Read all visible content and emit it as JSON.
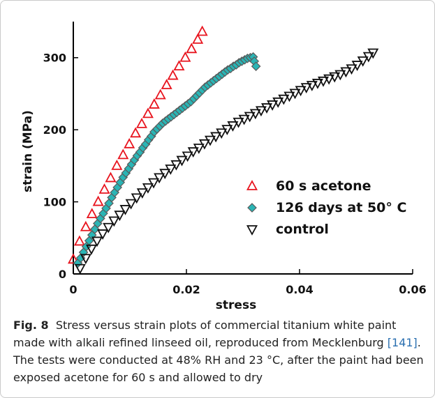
{
  "chart_data": {
    "type": "scatter",
    "xlabel": "stress",
    "ylabel": "strain (MPa)",
    "xlim": [
      0,
      0.06
    ],
    "ylim": [
      0,
      350
    ],
    "xticks": [
      0,
      0.02,
      0.04,
      0.06
    ],
    "xtick_labels": [
      "0",
      "0.02",
      "0.04",
      "0.06"
    ],
    "yticks": [
      0,
      100,
      200,
      300
    ],
    "ytick_labels": [
      "0",
      "100",
      "200",
      "300"
    ],
    "grid": false,
    "legend_position": "lower-right",
    "series": [
      {
        "name": "60 s acetone",
        "marker": "triangle-up",
        "color": "#e8141e",
        "x": [
          0.0,
          0.0011,
          0.0022,
          0.0033,
          0.0044,
          0.0055,
          0.0066,
          0.0077,
          0.0088,
          0.0099,
          0.011,
          0.0121,
          0.0132,
          0.0143,
          0.0154,
          0.0165,
          0.0176,
          0.0187,
          0.0198,
          0.0209,
          0.022,
          0.0228
        ],
        "y": [
          20,
          45,
          65,
          83,
          100,
          117,
          133,
          150,
          165,
          180,
          195,
          208,
          222,
          235,
          248,
          262,
          275,
          288,
          300,
          312,
          325,
          336
        ]
      },
      {
        "name": "126 days at 50° C",
        "marker": "diamond",
        "color": "#2ab5b5",
        "x": [
          0.0008,
          0.0013,
          0.0018,
          0.0023,
          0.0028,
          0.0033,
          0.0038,
          0.0043,
          0.0048,
          0.0053,
          0.0058,
          0.0063,
          0.0068,
          0.0073,
          0.0078,
          0.0083,
          0.0088,
          0.0093,
          0.0098,
          0.0103,
          0.0108,
          0.0113,
          0.0118,
          0.0123,
          0.0128,
          0.0133,
          0.0138,
          0.0143,
          0.0148,
          0.0153,
          0.0158,
          0.0163,
          0.0168,
          0.0173,
          0.0178,
          0.0183,
          0.0188,
          0.0193,
          0.0198,
          0.0203,
          0.0208,
          0.0213,
          0.0218,
          0.0223,
          0.0228,
          0.0233,
          0.0238,
          0.0243,
          0.0248,
          0.0253,
          0.0258,
          0.0263,
          0.0268,
          0.0273,
          0.0278,
          0.0283,
          0.0288,
          0.0293,
          0.0298,
          0.0303,
          0.0308,
          0.0313,
          0.0318,
          0.032,
          0.0323
        ],
        "y": [
          15,
          22,
          30,
          38,
          46,
          54,
          62,
          70,
          77,
          84,
          91,
          98,
          106,
          113,
          120,
          127,
          134,
          140,
          146,
          152,
          158,
          164,
          169,
          175,
          180,
          186,
          191,
          197,
          201,
          205,
          209,
          212,
          215,
          218,
          221,
          224,
          227,
          230,
          233,
          236,
          239,
          243,
          247,
          251,
          255,
          259,
          262,
          265,
          268,
          271,
          274,
          277,
          280,
          283,
          285,
          288,
          290,
          293,
          295,
          297,
          299,
          300,
          301,
          295,
          288
        ]
      },
      {
        "name": "control",
        "marker": "triangle-down",
        "color": "#111111",
        "x": [
          0.0012,
          0.0022,
          0.0032,
          0.0042,
          0.0052,
          0.0062,
          0.0072,
          0.0082,
          0.0092,
          0.0102,
          0.0112,
          0.0122,
          0.0132,
          0.0142,
          0.0152,
          0.0162,
          0.0172,
          0.0182,
          0.0192,
          0.0202,
          0.0212,
          0.0222,
          0.0232,
          0.0242,
          0.0252,
          0.0262,
          0.0272,
          0.0282,
          0.0292,
          0.0302,
          0.0312,
          0.0322,
          0.0332,
          0.0342,
          0.0352,
          0.0362,
          0.0372,
          0.0382,
          0.0392,
          0.0402,
          0.0412,
          0.0422,
          0.0432,
          0.0442,
          0.0452,
          0.0462,
          0.0472,
          0.0482,
          0.0492,
          0.0502,
          0.0512,
          0.0522,
          0.053
        ],
        "y": [
          8,
          22,
          35,
          46,
          56,
          65,
          74,
          82,
          90,
          98,
          106,
          113,
          120,
          127,
          134,
          140,
          146,
          152,
          158,
          164,
          170,
          175,
          181,
          186,
          191,
          196,
          201,
          206,
          211,
          215,
          219,
          223,
          227,
          231,
          235,
          239,
          243,
          247,
          251,
          255,
          259,
          262,
          265,
          268,
          271,
          274,
          277,
          281,
          285,
          290,
          296,
          302,
          307
        ]
      }
    ]
  },
  "caption": {
    "label": "Fig. 8",
    "text_before_ref": "Stress versus strain plots of commercial titanium white paint made with alkali refined linseed oil, reproduced from Mecklenburg ",
    "ref": "[141]",
    "text_after_ref": ". The tests were conducted at 48% RH and 23 °C, after the paint had been exposed acetone for 60 s and allowed to dry"
  }
}
